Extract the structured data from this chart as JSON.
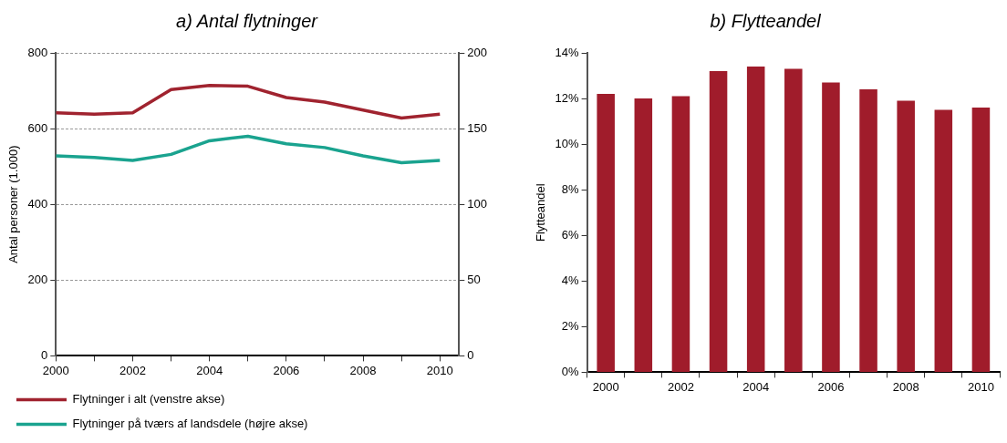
{
  "chart_data": [
    {
      "type": "line",
      "title": "a) Antal flytninger",
      "ylabel": "Antal personer (1.000)",
      "x": [
        2000,
        2001,
        2002,
        2003,
        2004,
        2005,
        2006,
        2007,
        2008,
        2009,
        2010
      ],
      "xlim": [
        2000,
        2010.5
      ],
      "xticks": [
        2000,
        {
          "value": 2001,
          "label": null
        },
        2002,
        {
          "value": 2003,
          "label": null
        },
        2004,
        {
          "value": 2005,
          "label": null
        },
        2006,
        {
          "value": 2007,
          "label": null
        },
        2008,
        {
          "value": 2009,
          "label": null
        },
        2010
      ],
      "ylim": [
        0,
        800
      ],
      "yticks": [
        0,
        200,
        400,
        600,
        800
      ],
      "y2lim": [
        0,
        200
      ],
      "y2ticks": [
        0,
        50,
        100,
        150,
        200
      ],
      "grid": "y",
      "legend": "bottom",
      "series": [
        {
          "name": "Flytninger i alt (venstre akse)",
          "color": "#a0232f",
          "values": [
            642,
            638,
            642,
            703,
            714,
            712,
            682,
            670,
            649,
            628,
            638
          ]
        },
        {
          "name": "Flytninger på tværs af landsdele (højre akse)",
          "color": "#1aa38f",
          "axis": "y2",
          "values": [
            132,
            131,
            129,
            133,
            142,
            145,
            140,
            137.5,
            132,
            127.5,
            129
          ]
        }
      ]
    },
    {
      "type": "bar",
      "title": "b) Flytteandel",
      "ylabel": "Flytteandel",
      "categories": [
        "2000",
        null,
        "2002",
        null,
        "2004",
        null,
        "2006",
        null,
        "2008",
        null,
        "2010"
      ],
      "values": [
        12.2,
        12.0,
        12.1,
        13.2,
        13.4,
        13.3,
        12.7,
        12.4,
        11.9,
        11.5,
        11.6
      ],
      "color": "#a01c2b",
      "ylim": [
        0,
        14
      ],
      "yticks": [
        {
          "value": 0,
          "label": "0%"
        },
        {
          "value": 2,
          "label": "2%"
        },
        {
          "value": 4,
          "label": "4%"
        },
        {
          "value": 6,
          "label": "6%"
        },
        {
          "value": 8,
          "label": "8%"
        },
        {
          "value": 10,
          "label": "10%"
        },
        {
          "value": 12,
          "label": "12%"
        },
        {
          "value": 14,
          "label": "14%"
        }
      ]
    }
  ]
}
